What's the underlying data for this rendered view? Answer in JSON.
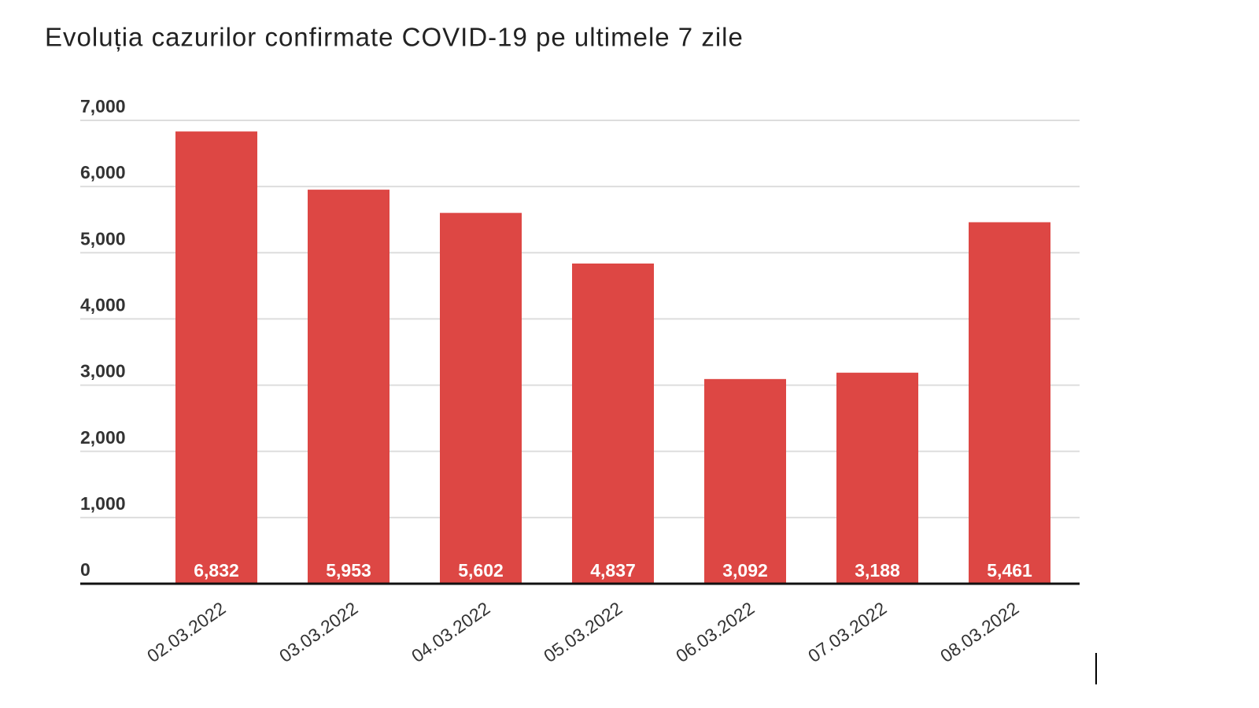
{
  "chart_data": {
    "type": "bar",
    "title": "Evoluția cazurilor confirmate COVID-19 pe ultimele 7 zile",
    "categories": [
      "02.03.2022",
      "03.03.2022",
      "04.03.2022",
      "05.03.2022",
      "06.03.2022",
      "07.03.2022",
      "08.03.2022"
    ],
    "values": [
      6832,
      5953,
      5602,
      4837,
      3092,
      3188,
      5461
    ],
    "value_labels": [
      "6,832",
      "5,953",
      "5,602",
      "4,837",
      "3,092",
      "3,188",
      "5,461"
    ],
    "color": "#dd4744",
    "ylim": [
      0,
      7000
    ],
    "yticks": [
      0,
      {
        "value": 1000,
        "label": "1,000"
      },
      {
        "value": 2000,
        "label": "2,000"
      },
      {
        "value": 3000,
        "label": "3,000"
      },
      {
        "value": 4000,
        "label": "4,000"
      },
      {
        "value": 5000,
        "label": "5,000"
      },
      {
        "value": 6000,
        "label": "6,000"
      },
      {
        "value": 7000,
        "label": "7,000"
      }
    ],
    "grid": true
  }
}
